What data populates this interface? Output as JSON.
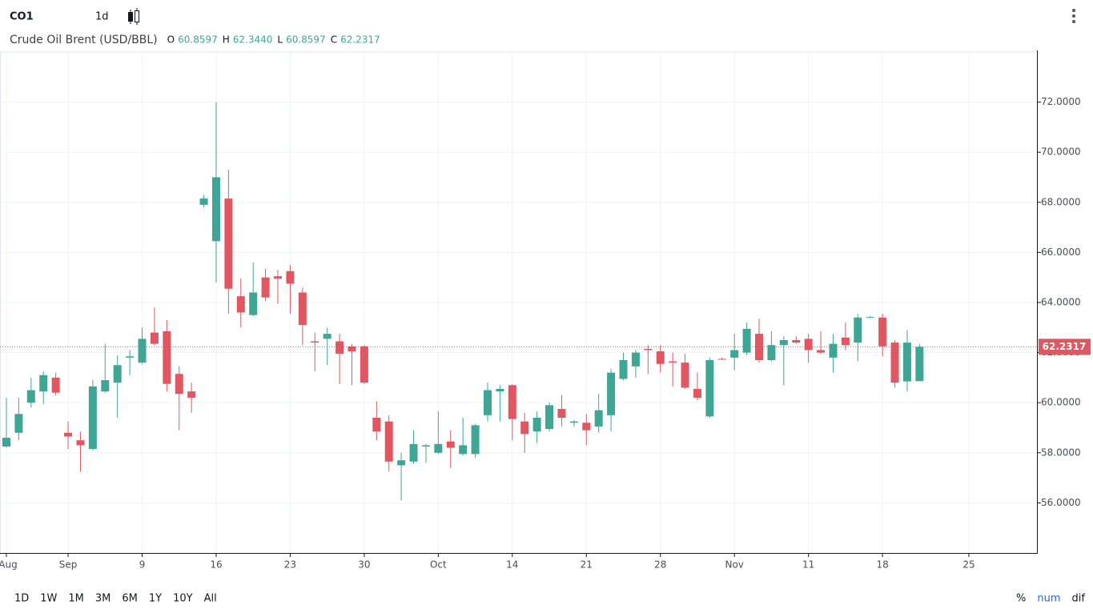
{
  "chart_data": {
    "type": "candlestick",
    "symbol": "CO1",
    "interval": "1d",
    "title": "Crude Oil Brent (USD/BBL)",
    "ohlc_legend": [
      {
        "key": "O",
        "label": "60.8597"
      },
      {
        "key": "H",
        "label": "62.3440"
      },
      {
        "key": "L",
        "label": "60.8597"
      },
      {
        "key": "C",
        "label": "62.2317"
      }
    ],
    "categories": [
      "Aug",
      null,
      null,
      null,
      null,
      "Sep",
      null,
      null,
      null,
      null,
      null,
      "9",
      null,
      null,
      null,
      null,
      null,
      "16",
      null,
      null,
      null,
      null,
      null,
      "23",
      null,
      null,
      null,
      null,
      null,
      "30",
      null,
      null,
      null,
      null,
      null,
      "Oct",
      null,
      null,
      null,
      null,
      null,
      "14",
      null,
      null,
      null,
      null,
      null,
      "21",
      null,
      null,
      null,
      null,
      null,
      "28",
      null,
      null,
      null,
      null,
      null,
      "Nov",
      null,
      null,
      null,
      null,
      null,
      "11",
      null,
      null,
      null,
      null,
      null,
      "18",
      null,
      null,
      null,
      null,
      null,
      null,
      "25"
    ],
    "open": [
      58.25,
      58.8,
      60.0,
      60.45,
      61.0,
      58.8,
      58.5,
      58.15,
      60.45,
      60.8,
      61.8,
      61.6,
      62.8,
      62.85,
      61.15,
      60.45,
      67.9,
      66.45,
      68.15,
      64.25,
      63.5,
      65.0,
      65.05,
      65.25,
      64.4,
      62.45,
      62.55,
      62.45,
      62.25,
      62.25,
      59.4,
      59.25,
      57.5,
      57.65,
      58.25,
      58.0,
      58.45,
      57.95,
      57.95,
      59.5,
      60.45,
      60.7,
      59.25,
      58.85,
      58.95,
      59.75,
      59.2,
      59.2,
      59.05,
      59.5,
      60.95,
      61.45,
      62.15,
      62.05,
      61.65,
      61.6,
      60.55,
      59.45,
      61.75,
      61.8,
      62.0,
      62.75,
      61.7,
      62.3,
      62.5,
      62.55,
      62.1,
      61.8,
      62.6,
      62.4,
      63.4,
      63.4,
      62.4,
      60.85,
      60.8597,
      null,
      null,
      null,
      null
    ],
    "high": [
      60.2,
      60.2,
      61.0,
      61.25,
      61.2,
      59.25,
      58.85,
      60.9,
      62.35,
      61.9,
      62.1,
      63.0,
      63.8,
      63.3,
      61.45,
      60.8,
      68.3,
      72.0,
      69.3,
      64.95,
      65.6,
      65.35,
      65.3,
      65.5,
      64.6,
      62.8,
      63.0,
      62.75,
      62.35,
      62.3,
      60.05,
      59.5,
      58.0,
      58.9,
      58.35,
      59.65,
      58.9,
      59.4,
      59.15,
      60.8,
      60.7,
      60.75,
      59.6,
      59.65,
      60.0,
      60.3,
      59.3,
      59.55,
      60.35,
      61.35,
      62.0,
      62.1,
      62.3,
      62.3,
      62.0,
      61.95,
      61.2,
      61.8,
      61.8,
      62.75,
      63.2,
      63.35,
      62.85,
      62.65,
      62.65,
      62.75,
      62.85,
      62.75,
      63.2,
      63.55,
      63.45,
      63.55,
      62.5,
      62.9,
      62.344,
      null,
      null,
      null,
      null
    ],
    "low": [
      58.2,
      58.5,
      59.8,
      59.95,
      60.3,
      58.15,
      57.25,
      58.1,
      60.4,
      59.4,
      61.1,
      61.55,
      62.3,
      60.45,
      58.9,
      59.6,
      67.8,
      64.8,
      63.55,
      63.0,
      63.45,
      64.05,
      63.95,
      63.55,
      62.3,
      61.25,
      61.5,
      60.75,
      60.7,
      60.75,
      58.5,
      57.25,
      56.1,
      57.55,
      57.6,
      57.95,
      57.4,
      57.9,
      57.8,
      59.25,
      59.25,
      58.5,
      58.0,
      58.4,
      58.85,
      59.05,
      59.05,
      58.3,
      58.8,
      58.85,
      60.9,
      61.0,
      61.15,
      61.2,
      60.65,
      60.55,
      60.1,
      59.4,
      61.7,
      61.3,
      61.9,
      61.6,
      61.65,
      60.7,
      62.35,
      61.6,
      61.95,
      61.2,
      62.1,
      61.65,
      63.38,
      61.85,
      60.6,
      60.45,
      60.8597,
      null,
      null,
      null,
      null
    ],
    "close": [
      58.6,
      59.55,
      60.5,
      61.1,
      60.4,
      58.65,
      58.3,
      60.65,
      60.9,
      61.5,
      61.85,
      62.55,
      62.35,
      60.75,
      60.35,
      60.2,
      68.15,
      69.0,
      64.55,
      63.6,
      64.4,
      64.2,
      64.95,
      64.75,
      63.1,
      62.4,
      62.75,
      61.95,
      62.05,
      60.8,
      58.85,
      57.65,
      57.7,
      58.35,
      58.3,
      58.35,
      58.2,
      58.3,
      59.1,
      60.5,
      60.55,
      59.35,
      58.75,
      59.4,
      59.9,
      59.4,
      59.25,
      58.9,
      59.7,
      61.2,
      61.7,
      62.0,
      62.1,
      61.55,
      61.6,
      60.6,
      60.2,
      61.7,
      61.72,
      62.1,
      62.95,
      61.7,
      62.3,
      62.5,
      62.4,
      62.1,
      62.0,
      62.35,
      62.3,
      63.4,
      63.42,
      62.25,
      60.8,
      62.4,
      62.2317,
      null,
      null,
      null,
      null
    ],
    "up_color": "#3fa696",
    "down_color": "#e15660",
    "ylim": [
      54,
      74
    ],
    "yticks": [
      {
        "value": 56,
        "label": "56.0000"
      },
      {
        "value": 58,
        "label": "58.0000"
      },
      {
        "value": 60,
        "label": "60.0000"
      },
      {
        "value": 62,
        "label": "62.0000"
      },
      {
        "value": 64,
        "label": "64.0000"
      },
      {
        "value": 66,
        "label": "66.0000"
      },
      {
        "value": 68,
        "label": "68.0000"
      },
      {
        "value": 70,
        "label": "70.0000"
      },
      {
        "value": 72,
        "label": "72.0000"
      }
    ],
    "grid": true,
    "price_line": {
      "value": 62.2317,
      "label": "62.2317",
      "color": "#e15660"
    }
  },
  "toolbar": {
    "ranges": [
      "1D",
      "1W",
      "1M",
      "3M",
      "6M",
      "1Y",
      "10Y",
      "All"
    ],
    "scale_modes": [
      "%",
      "num",
      "dif"
    ]
  }
}
